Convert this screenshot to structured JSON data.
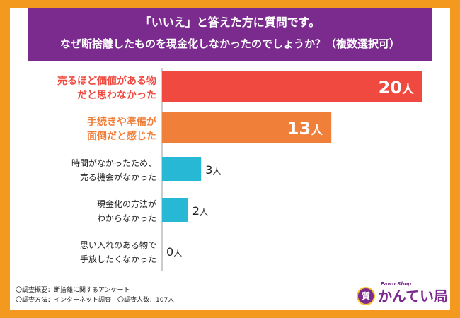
{
  "header": {
    "line1": "「いいえ」と答えた方に質問です。",
    "line2": "なぜ断捨離したものを現金化しなかったのでしょうか？（複数選択可）"
  },
  "chart_data": {
    "type": "bar",
    "orientation": "horizontal",
    "categories": [
      [
        "売るほど価値がある物",
        "だと思わなかった"
      ],
      [
        "手続きや準備が",
        "面倒だと感じた"
      ],
      [
        "時間がなかったため、",
        "売る機会がなかった"
      ],
      [
        "現金化の方法が",
        "わからなかった"
      ],
      [
        "思い入れのある物で",
        "手放したくなかった"
      ]
    ],
    "values": [
      20,
      13,
      3,
      2,
      0
    ],
    "unit": "人",
    "bar_colors": [
      "#f0493f",
      "#f07f3a",
      "#27b8d6",
      "#27b8d6",
      "#27b8d6"
    ],
    "label_colors": [
      "#f0493f",
      "#f07f3a",
      "#222222",
      "#222222",
      "#222222"
    ],
    "xlim": [
      0,
      20
    ],
    "grid": false,
    "legend": "none"
  },
  "footer": {
    "line1": "〇調査概要：断捨離に関するアンケート",
    "line2": "〇調査方法：インターネット調査　〇調査人数：107人"
  },
  "logo": {
    "tagline": "Pawn Shop",
    "brand": "かんてい局",
    "mark": "質"
  },
  "colors": {
    "frame": "#f39a1e",
    "header": "#7b2a8e"
  }
}
